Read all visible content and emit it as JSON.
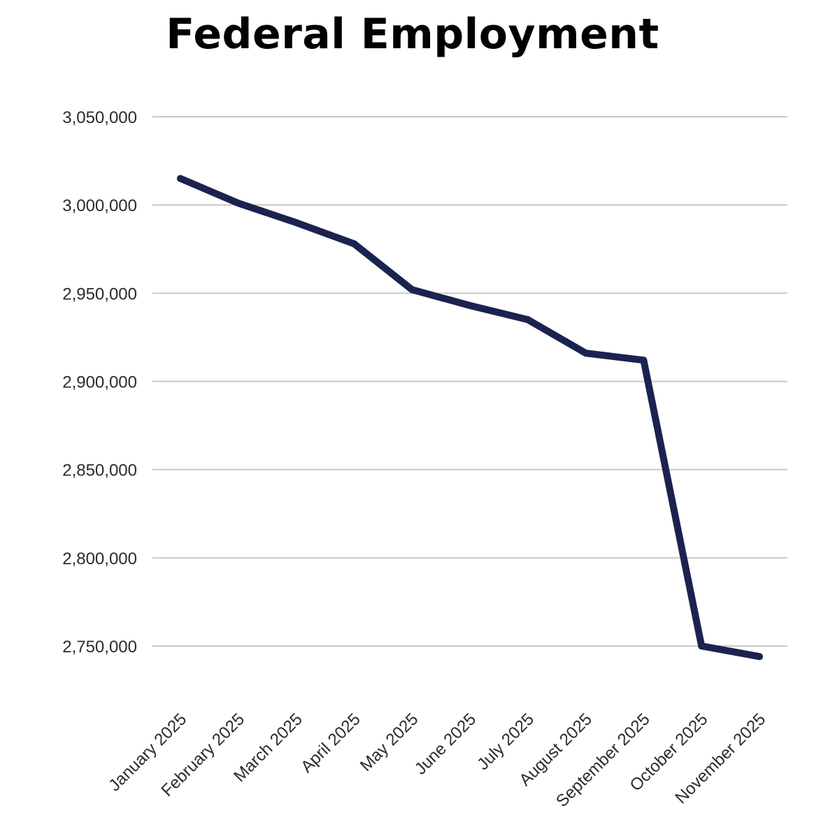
{
  "chart_data": {
    "type": "line",
    "title": "Federal Employment",
    "xlabel": "",
    "ylabel": "",
    "categories": [
      "January 2025",
      "February 2025",
      "March 2025",
      "April 2025",
      "May 2025",
      "June 2025",
      "July 2025",
      "August 2025",
      "September 2025",
      "October 2025",
      "November 2025"
    ],
    "series": [
      {
        "name": "Federal Employment",
        "values": [
          3015000,
          3001000,
          2990000,
          2978000,
          2952000,
          2943000,
          2935000,
          2916000,
          2912000,
          2750000,
          2744000
        ]
      }
    ],
    "ylim": [
      2750000,
      3050000
    ],
    "yticks": [
      3050000,
      3000000,
      2950000,
      2900000,
      2850000,
      2800000,
      2750000
    ],
    "ytick_labels": [
      "3,050,000",
      "3,000,000",
      "2,950,000",
      "2,900,000",
      "2,850,000",
      "2,800,000",
      "2,750,000"
    ],
    "grid": true,
    "legend": "none",
    "line_color": "#1a2350",
    "text_color": "#2b2b2b"
  }
}
